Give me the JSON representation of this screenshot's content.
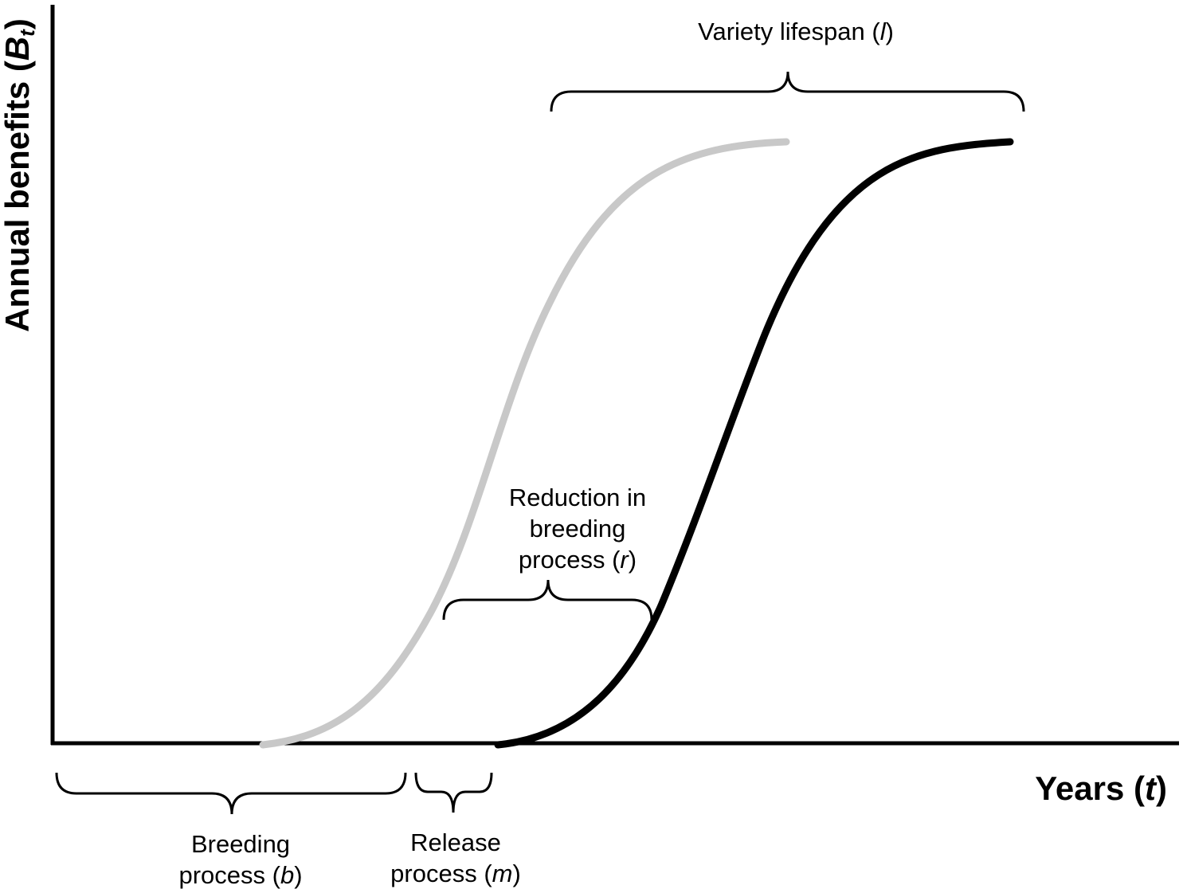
{
  "axes": {
    "y_title": "Annual benefits (",
    "y_symbol": "B",
    "y_subscript": "t",
    "y_close": ")",
    "x_title": "Years (",
    "x_symbol": "t",
    "x_close": ")"
  },
  "curves": {
    "baseline_color": "#c8c8c8",
    "improved_color": "#000000"
  },
  "labels": {
    "lifespan": {
      "text": "Variety lifespan (",
      "symbol": "l",
      "close": ")"
    },
    "reduction": {
      "line1": "Reduction in",
      "line2": "breeding",
      "line3": "process (",
      "symbol": "r",
      "close": ")"
    },
    "breeding": {
      "line1": "Breeding",
      "line2": "process (",
      "symbol": "b",
      "close": ")"
    },
    "release": {
      "line1": "Release",
      "line2": "process (",
      "symbol": "m",
      "close": ")"
    }
  }
}
